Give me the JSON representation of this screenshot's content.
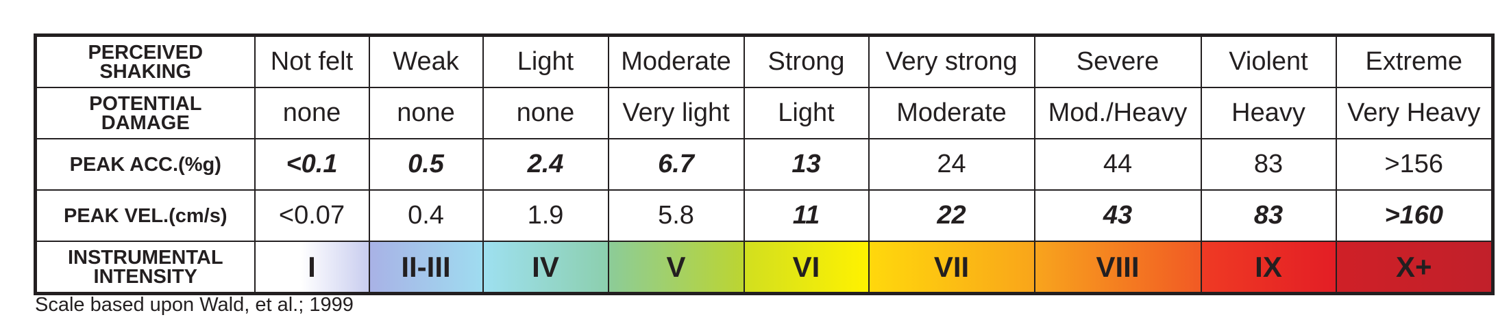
{
  "table": {
    "rows": [
      {
        "header": "PERCEIVED SHAKING",
        "cells": [
          "Not felt",
          "Weak",
          "Light",
          "Moderate",
          "Strong",
          "Very strong",
          "Severe",
          "Violent",
          "Extreme"
        ]
      },
      {
        "header": "POTENTIAL DAMAGE",
        "cells": [
          "none",
          "none",
          "none",
          "Very light",
          "Light",
          "Moderate",
          "Mod./Heavy",
          "Heavy",
          "Very Heavy"
        ]
      },
      {
        "header": "PEAK ACC.(%g)",
        "cells": [
          "<0.1",
          "0.5",
          "2.4",
          "6.7",
          "13",
          "24",
          "44",
          "83",
          ">156"
        ]
      },
      {
        "header": "PEAK VEL.(cm/s)",
        "cells": [
          "<0.07",
          "0.4",
          "1.9",
          "5.8",
          "11",
          "22",
          "43",
          "83",
          ">160"
        ]
      },
      {
        "header": "INSTRUMENTAL INTENSITY",
        "cells": [
          "I",
          "II-III",
          "IV",
          "V",
          "VI",
          "VII",
          "VIII",
          "IX",
          "X+"
        ]
      }
    ]
  },
  "footnote": "Scale based upon Wald, et al.; 1999"
}
